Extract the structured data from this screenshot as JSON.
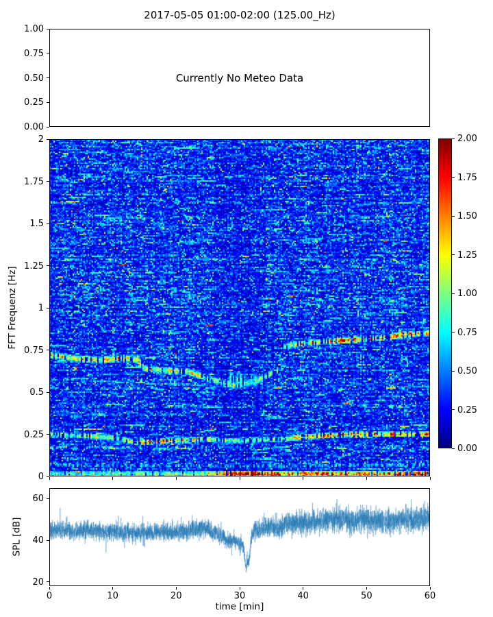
{
  "figure": {
    "title": "2017-05-05 01:00-02:00 (125.00_Hz)",
    "background": "#ffffff",
    "text_color": "#000000"
  },
  "chart_data": [
    {
      "id": "meteo-panel",
      "type": "empty",
      "annotation": "Currently No Meteo Data",
      "ylim": [
        0,
        1
      ],
      "yticks": {
        "values": [
          1.0,
          0.75,
          0.5,
          0.25,
          0.0
        ],
        "labels": [
          "1.00",
          "0.75",
          "0.50",
          "0.25",
          "0.00"
        ]
      }
    },
    {
      "id": "spectrogram",
      "type": "heatmap",
      "ylabel": "FFT Frequenz [Hz]",
      "xlim": [
        0,
        60
      ],
      "ylim": [
        0,
        2
      ],
      "clim": [
        0,
        2
      ],
      "colormap": "jet",
      "yticks": {
        "values": [
          2,
          1.75,
          1.5,
          1.25,
          1,
          0.75,
          0.5,
          0.25,
          0
        ],
        "labels": [
          "2",
          "1.75",
          "1.5",
          "1.25",
          "1",
          "0.75",
          "0.5",
          "0.25",
          "0"
        ]
      },
      "xticks": {
        "values": [
          0,
          10,
          20,
          30,
          40,
          50,
          60
        ],
        "labels": []
      },
      "colorbar": {
        "ticks": {
          "values": [
            2,
            1.75,
            1.5,
            1.25,
            1,
            0.75,
            0.5,
            0.25,
            0
          ],
          "labels": [
            "2.00",
            "1.75",
            "1.50",
            "1.25",
            "1.00",
            "0.75",
            "0.50",
            "0.25",
            "0.00"
          ]
        }
      },
      "background": {
        "base": 0.05,
        "exp_scale": 0.18,
        "run_scale": 0.25,
        "dim_region": {
          "x0": 26,
          "x1": 34,
          "gain": 0.85
        }
      },
      "bands": [
        {
          "name": "drifting-band-low-segment",
          "width": 0.022,
          "gap": 0.3,
          "track": [
            [
              0,
              0.72
            ],
            [
              4,
              0.7
            ],
            [
              8,
              0.69
            ],
            [
              12,
              0.7
            ],
            [
              14,
              0.69
            ],
            [
              15,
              0.64
            ],
            [
              18,
              0.63
            ],
            [
              22,
              0.62
            ],
            [
              25,
              0.58
            ],
            [
              27,
              0.56
            ],
            [
              29,
              0.54
            ],
            [
              31,
              0.55
            ],
            [
              33,
              0.57
            ],
            [
              35,
              0.61
            ],
            [
              37,
              0.65
            ]
          ],
          "intensity": [
            [
              0,
              1.1
            ],
            [
              8,
              1.2
            ],
            [
              11,
              1.4
            ],
            [
              14,
              1.2
            ],
            [
              18,
              1.0
            ],
            [
              22,
              1.05
            ],
            [
              26,
              0.9
            ],
            [
              31,
              0.95
            ],
            [
              35,
              0.9
            ],
            [
              37,
              0.9
            ]
          ]
        },
        {
          "name": "drifting-band-high-segment",
          "width": 0.02,
          "gap": 0.25,
          "track": [
            [
              37,
              0.77
            ],
            [
              40,
              0.79
            ],
            [
              44,
              0.8
            ],
            [
              48,
              0.81
            ],
            [
              52,
              0.82
            ],
            [
              56,
              0.84
            ],
            [
              60,
              0.85
            ]
          ],
          "intensity": [
            [
              37,
              1.0
            ],
            [
              42,
              1.3
            ],
            [
              46,
              1.45
            ],
            [
              50,
              1.3
            ],
            [
              54,
              1.45
            ],
            [
              58,
              1.2
            ],
            [
              60,
              1.3
            ]
          ]
        },
        {
          "name": "low-frequency-band",
          "width": 0.018,
          "gap": 0.3,
          "track": [
            [
              0,
              0.25
            ],
            [
              6,
              0.24
            ],
            [
              10,
              0.23
            ],
            [
              14,
              0.2
            ],
            [
              18,
              0.21
            ],
            [
              24,
              0.22
            ],
            [
              30,
              0.21
            ],
            [
              36,
              0.22
            ],
            [
              42,
              0.24
            ],
            [
              48,
              0.25
            ],
            [
              54,
              0.25
            ],
            [
              60,
              0.25
            ]
          ],
          "intensity": [
            [
              0,
              0.95
            ],
            [
              8,
              1.0
            ],
            [
              13,
              1.2
            ],
            [
              16,
              1.4
            ],
            [
              20,
              1.35
            ],
            [
              24,
              1.1
            ],
            [
              28,
              0.9
            ],
            [
              32,
              0.9
            ],
            [
              36,
              1.0
            ],
            [
              40,
              1.25
            ],
            [
              44,
              1.35
            ],
            [
              48,
              1.3
            ],
            [
              52,
              1.35
            ],
            [
              56,
              1.3
            ],
            [
              60,
              1.35
            ]
          ]
        },
        {
          "name": "near-dc-band",
          "width": 0.02,
          "gap": 0.12,
          "track": [
            [
              0,
              0.015
            ],
            [
              60,
              0.015
            ]
          ],
          "intensity": [
            [
              0,
              0.8
            ],
            [
              10,
              0.85
            ],
            [
              20,
              0.9
            ],
            [
              26,
              1.1
            ],
            [
              28,
              1.8
            ],
            [
              31,
              2.0
            ],
            [
              34,
              1.8
            ],
            [
              38,
              1.5
            ],
            [
              42,
              1.7
            ],
            [
              46,
              1.4
            ],
            [
              50,
              1.6
            ],
            [
              54,
              1.5
            ],
            [
              60,
              1.9
            ]
          ]
        },
        {
          "name": "faint-low-band",
          "width": 0.014,
          "gap": 0.55,
          "track": [
            [
              0,
              0.07
            ],
            [
              30,
              0.06
            ],
            [
              60,
              0.07
            ]
          ],
          "intensity": [
            [
              0,
              0.6
            ],
            [
              30,
              0.55
            ],
            [
              60,
              0.65
            ]
          ]
        },
        {
          "name": "event-blob",
          "width": 0.05,
          "gap": 0.35,
          "track": [
            [
              28,
              0.58
            ],
            [
              30,
              0.57
            ],
            [
              33,
              0.57
            ]
          ],
          "intensity": [
            [
              28,
              0.7
            ],
            [
              30,
              0.8
            ],
            [
              33,
              0.65
            ]
          ]
        }
      ]
    },
    {
      "id": "spl",
      "type": "line",
      "xlabel": "time [min]",
      "ylabel": "SPL [dB]",
      "xlim": [
        0,
        60
      ],
      "ylim": [
        18,
        65
      ],
      "line_color": "#1f77b4",
      "xticks": {
        "values": [
          0,
          10,
          20,
          30,
          40,
          50,
          60
        ],
        "labels": [
          "0",
          "10",
          "20",
          "30",
          "40",
          "50",
          "60"
        ]
      },
      "yticks": {
        "values": [
          60,
          40,
          20
        ],
        "labels": [
          "60",
          "40",
          "20"
        ]
      },
      "baseline": [
        [
          0,
          45
        ],
        [
          2,
          45
        ],
        [
          4,
          44
        ],
        [
          6,
          45
        ],
        [
          8,
          44
        ],
        [
          10,
          44
        ],
        [
          12,
          43.5
        ],
        [
          14,
          44
        ],
        [
          16,
          43.5
        ],
        [
          18,
          44
        ],
        [
          20,
          44
        ],
        [
          22,
          44.5
        ],
        [
          24,
          46
        ],
        [
          25,
          45
        ],
        [
          26,
          44
        ],
        [
          27,
          42.5
        ],
        [
          28,
          40
        ],
        [
          29,
          39.5
        ],
        [
          30,
          38.5
        ],
        [
          30.6,
          37
        ],
        [
          31,
          26
        ],
        [
          31.5,
          31
        ],
        [
          31.9,
          42
        ],
        [
          32.5,
          45
        ],
        [
          34,
          46
        ],
        [
          35,
          47
        ],
        [
          36,
          45
        ],
        [
          37,
          47
        ],
        [
          38,
          48
        ],
        [
          40,
          48
        ],
        [
          42,
          49
        ],
        [
          44,
          50
        ],
        [
          46,
          50
        ],
        [
          48,
          49
        ],
        [
          50,
          50
        ],
        [
          52,
          49
        ],
        [
          54,
          49
        ],
        [
          56,
          50
        ],
        [
          58,
          50
        ],
        [
          60,
          51
        ]
      ],
      "noise_db": [
        [
          0,
          3.5
        ],
        [
          20,
          3.5
        ],
        [
          24,
          4
        ],
        [
          28,
          3
        ],
        [
          30.5,
          2.5
        ],
        [
          31,
          1.5
        ],
        [
          32,
          3.5
        ],
        [
          34,
          4
        ],
        [
          38,
          4.5
        ],
        [
          45,
          5
        ],
        [
          60,
          5
        ]
      ]
    }
  ]
}
